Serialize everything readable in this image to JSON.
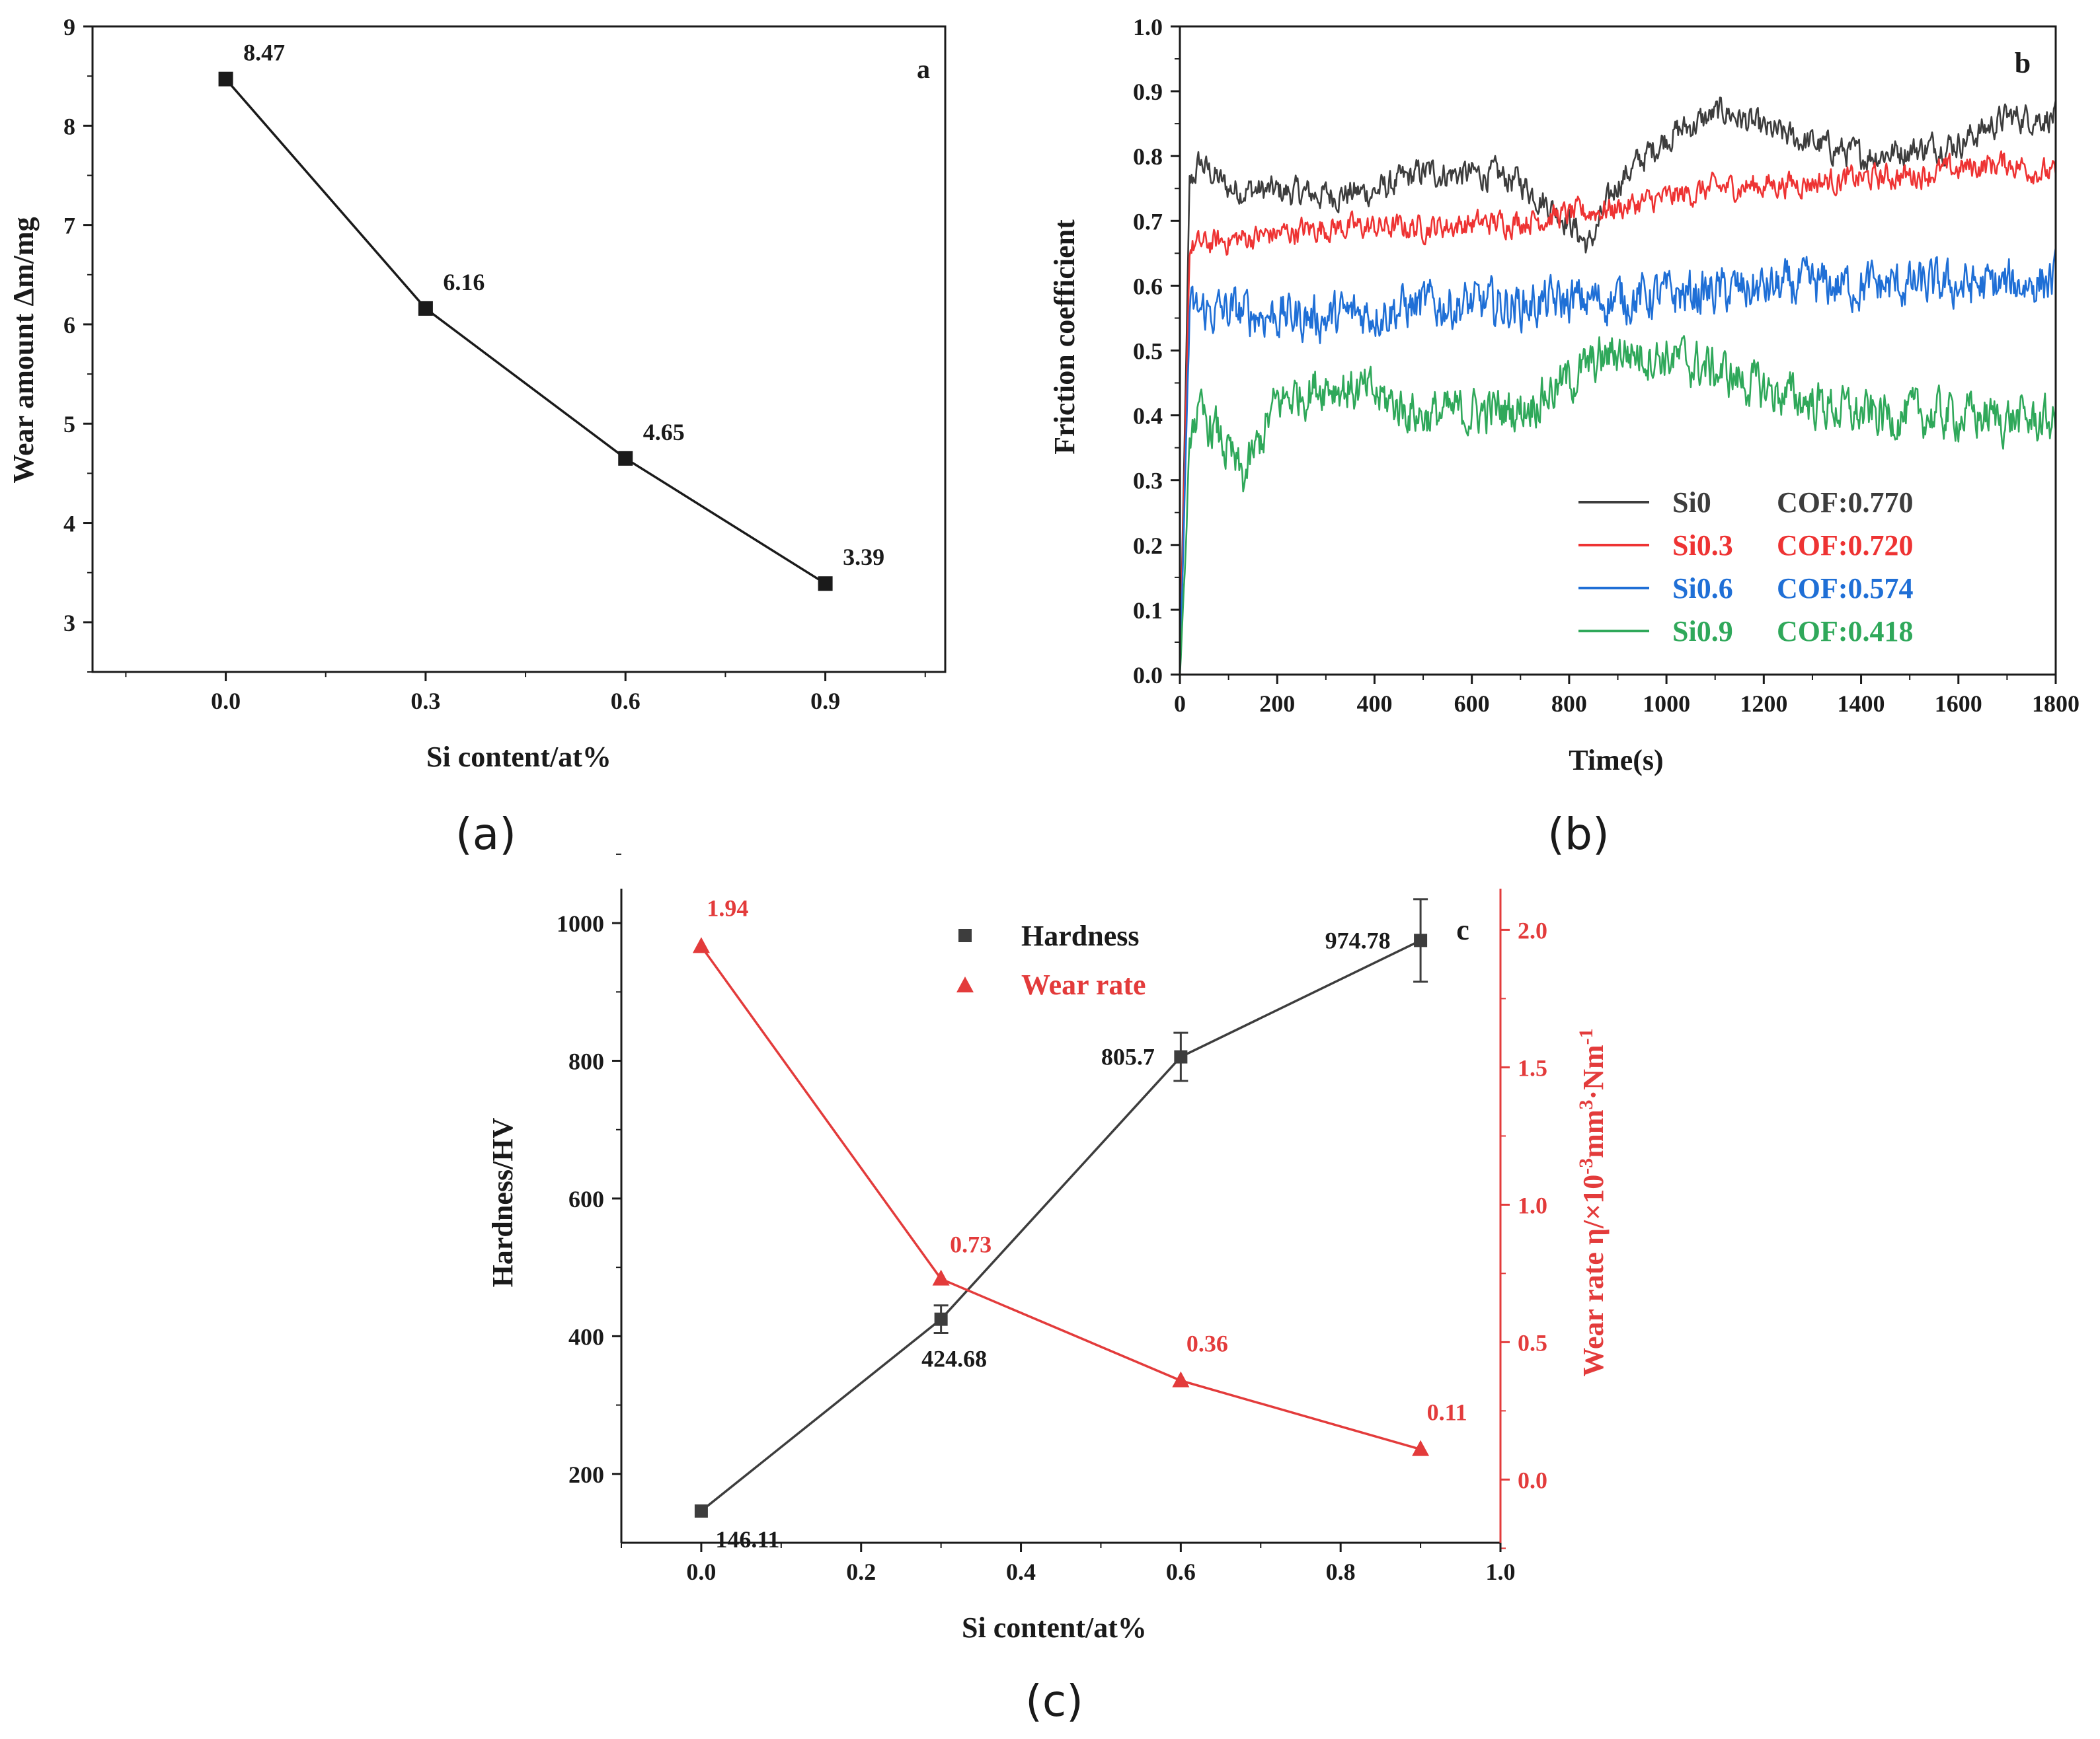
{
  "colors": {
    "black": "#1a1a1a",
    "si0": "#3d3d3d",
    "si03": "#ee3333",
    "si06": "#1f6fd6",
    "si09": "#2fa85a",
    "red": "#e33b3b"
  },
  "chart_data": [
    {
      "id": "a",
      "type": "line",
      "panel_letter": "a",
      "caption": "(a)",
      "xlabel": "Si content/at%",
      "ylabel": "Wear amount Δm/mg",
      "xlim": [
        -0.2,
        1.08
      ],
      "ylim": [
        2.5,
        9
      ],
      "xticks": [
        "0.0",
        "0.3",
        "0.6",
        "0.9"
      ],
      "yticks": [
        "3",
        "4",
        "5",
        "6",
        "7",
        "8",
        "9"
      ],
      "x": [
        0.0,
        0.3,
        0.6,
        0.9
      ],
      "values": [
        8.47,
        6.16,
        4.65,
        3.39
      ],
      "data_labels": [
        "8.47",
        "6.16",
        "4.65",
        "3.39"
      ]
    },
    {
      "id": "b",
      "type": "line",
      "panel_letter": "b",
      "caption": "(b)",
      "xlabel": "Time(s)",
      "ylabel": "Friction coefficient",
      "xlim": [
        0,
        1800
      ],
      "ylim": [
        0,
        1.0
      ],
      "xticks": [
        "0",
        "200",
        "400",
        "600",
        "800",
        "1000",
        "1200",
        "1400",
        "1600",
        "1800"
      ],
      "yticks": [
        "0.0",
        "0.1",
        "0.2",
        "0.3",
        "0.4",
        "0.5",
        "0.6",
        "0.7",
        "0.8",
        "0.9",
        "1.0"
      ],
      "legend_position": "bottom-right",
      "series": [
        {
          "name": "Si0",
          "cof_label": "COF:0.770",
          "color_key": "si0",
          "noise": 0.025,
          "trend": [
            [
              0,
              0
            ],
            [
              20,
              0.75
            ],
            [
              40,
              0.79
            ],
            [
              100,
              0.75
            ],
            [
              300,
              0.74
            ],
            [
              400,
              0.745
            ],
            [
              500,
              0.775
            ],
            [
              650,
              0.77
            ],
            [
              700,
              0.76
            ],
            [
              800,
              0.7
            ],
            [
              840,
              0.66
            ],
            [
              900,
              0.76
            ],
            [
              1000,
              0.83
            ],
            [
              1120,
              0.87
            ],
            [
              1200,
              0.84
            ],
            [
              1400,
              0.8
            ],
            [
              1600,
              0.82
            ],
            [
              1700,
              0.86
            ],
            [
              1800,
              0.86
            ]
          ]
        },
        {
          "name": "Si0.3",
          "cof_label": "COF:0.720",
          "color_key": "si03",
          "noise": 0.022,
          "trend": [
            [
              0,
              0
            ],
            [
              20,
              0.66
            ],
            [
              100,
              0.67
            ],
            [
              300,
              0.69
            ],
            [
              500,
              0.69
            ],
            [
              700,
              0.7
            ],
            [
              900,
              0.72
            ],
            [
              1100,
              0.75
            ],
            [
              1300,
              0.76
            ],
            [
              1500,
              0.77
            ],
            [
              1700,
              0.79
            ],
            [
              1800,
              0.77
            ]
          ]
        },
        {
          "name": "Si0.6",
          "cof_label": "COF:0.574",
          "color_key": "si06",
          "noise": 0.04,
          "trend": [
            [
              0,
              0
            ],
            [
              20,
              0.56
            ],
            [
              100,
              0.56
            ],
            [
              300,
              0.55
            ],
            [
              500,
              0.57
            ],
            [
              700,
              0.57
            ],
            [
              900,
              0.58
            ],
            [
              1100,
              0.59
            ],
            [
              1300,
              0.6
            ],
            [
              1500,
              0.6
            ],
            [
              1700,
              0.6
            ],
            [
              1800,
              0.61
            ]
          ]
        },
        {
          "name": "Si0.9",
          "cof_label": "COF:0.418",
          "color_key": "si09",
          "noise": 0.04,
          "trend": [
            [
              0,
              0
            ],
            [
              25,
              0.4
            ],
            [
              70,
              0.38
            ],
            [
              130,
              0.3
            ],
            [
              200,
              0.42
            ],
            [
              300,
              0.45
            ],
            [
              400,
              0.43
            ],
            [
              500,
              0.4
            ],
            [
              700,
              0.41
            ],
            [
              900,
              0.5
            ],
            [
              1000,
              0.49
            ],
            [
              1100,
              0.47
            ],
            [
              1200,
              0.44
            ],
            [
              1400,
              0.4
            ],
            [
              1600,
              0.4
            ],
            [
              1800,
              0.39
            ]
          ]
        }
      ]
    },
    {
      "id": "c",
      "type": "line",
      "panel_letter": "c",
      "caption": "(c)",
      "xlabel": "Si content/at%",
      "ylabel_left": "Hardness/HV",
      "ylabel_right_main": "Wear rate η/×10",
      "ylabel_right_sup1": "-3",
      "ylabel_right_mid": "mm",
      "ylabel_right_sup2": "3",
      "ylabel_right_mid2": "·Nm",
      "ylabel_right_sup3": "-1",
      "xlim": [
        -0.1,
        1.0
      ],
      "ylim_left": [
        100,
        1050
      ],
      "ylim_right": [
        -0.23,
        2.15
      ],
      "xticks": [
        "0.0",
        "0.2",
        "0.4",
        "0.6",
        "0.8",
        "1.0"
      ],
      "yticks_left": [
        "200",
        "400",
        "600",
        "800",
        "1000"
      ],
      "yticks_right": [
        "0.0",
        "0.5",
        "1.0",
        "1.5",
        "2.0"
      ],
      "x": [
        0.0,
        0.3,
        0.6,
        0.9
      ],
      "series": [
        {
          "name": "Hardness",
          "color_key": "si0",
          "axis": "left",
          "values": [
            146.11,
            424.68,
            805.7,
            974.78
          ],
          "errors": [
            0,
            20,
            35,
            60
          ],
          "data_labels": [
            "146.11",
            "424.68",
            "805.7",
            "974.78"
          ]
        },
        {
          "name": "Wear rate",
          "color_key": "red",
          "axis": "right",
          "values": [
            1.94,
            0.73,
            0.36,
            0.11
          ],
          "data_labels": [
            "1.94",
            "0.73",
            "0.36",
            "0.11"
          ]
        }
      ]
    }
  ]
}
